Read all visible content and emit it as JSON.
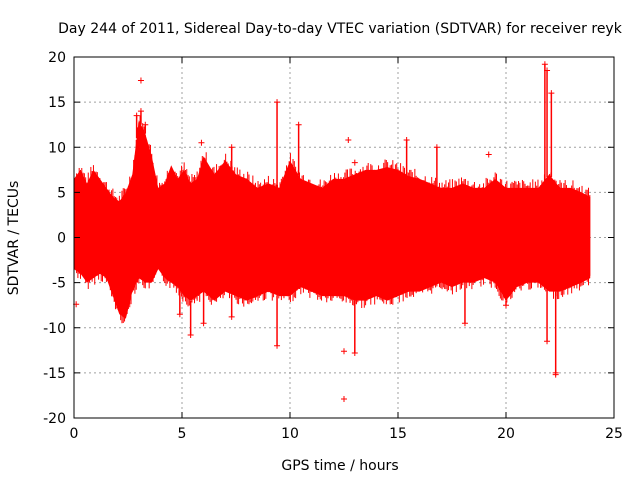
{
  "chart_data": {
    "type": "scatter",
    "title": "Day 244 of 2011, Sidereal Day-to-day VTEC variation (SDTVAR) for receiver reyk",
    "xlabel": "GPS time / hours",
    "ylabel": "SDTVAR / TECUs",
    "xlim": [
      0,
      25
    ],
    "ylim": [
      -20,
      20
    ],
    "xticks": [
      0,
      5,
      10,
      15,
      20,
      25
    ],
    "yticks": [
      -20,
      -15,
      -10,
      -5,
      0,
      5,
      10,
      15,
      20
    ],
    "grid": true,
    "marker": "+",
    "series_color": "#ff0000",
    "envelope": {
      "x": [
        0.0,
        0.3,
        0.6,
        0.9,
        1.2,
        1.5,
        1.8,
        2.1,
        2.4,
        2.7,
        3.0,
        3.3,
        3.6,
        3.9,
        4.2,
        4.5,
        4.8,
        5.1,
        5.4,
        5.7,
        6.0,
        6.5,
        7.0,
        7.5,
        8.0,
        8.5,
        9.0,
        9.5,
        10.0,
        10.5,
        11.0,
        11.5,
        12.0,
        12.5,
        13.0,
        13.5,
        14.0,
        14.5,
        15.0,
        15.5,
        16.0,
        16.5,
        17.0,
        17.5,
        18.0,
        18.5,
        19.0,
        19.5,
        20.0,
        20.5,
        21.0,
        21.5,
        22.0,
        22.5,
        23.0,
        23.5,
        23.9
      ],
      "upper": [
        6.5,
        7.5,
        6.0,
        7.5,
        6.5,
        5.5,
        4.5,
        4.0,
        5.0,
        7.0,
        13.0,
        11.5,
        9.0,
        5.5,
        6.0,
        8.0,
        6.5,
        7.5,
        6.0,
        6.5,
        9.0,
        7.0,
        8.5,
        7.0,
        6.5,
        5.5,
        6.0,
        5.5,
        8.5,
        6.5,
        6.0,
        5.5,
        6.5,
        6.5,
        7.0,
        7.5,
        7.5,
        7.8,
        7.5,
        6.8,
        6.5,
        6.0,
        5.5,
        5.5,
        6.0,
        5.5,
        5.5,
        6.5,
        5.5,
        5.5,
        5.5,
        5.5,
        7.0,
        5.5,
        5.5,
        5.0,
        4.5
      ],
      "lower": [
        -3.5,
        -4.0,
        -5.0,
        -4.5,
        -4.0,
        -4.5,
        -6.5,
        -8.5,
        -9.0,
        -6.0,
        -4.5,
        -5.0,
        -5.0,
        -3.5,
        -4.5,
        -5.0,
        -5.5,
        -6.5,
        -7.0,
        -6.5,
        -6.0,
        -7.0,
        -6.0,
        -6.5,
        -7.0,
        -6.5,
        -6.0,
        -6.5,
        -6.5,
        -5.5,
        -6.0,
        -6.5,
        -6.5,
        -6.5,
        -7.0,
        -7.0,
        -6.5,
        -7.0,
        -6.5,
        -6.0,
        -6.0,
        -5.5,
        -5.0,
        -5.5,
        -5.0,
        -5.0,
        -4.5,
        -5.0,
        -7.0,
        -5.5,
        -5.0,
        -5.0,
        -6.0,
        -6.0,
        -5.5,
        -5.0,
        -4.5
      ]
    },
    "spikes": [
      {
        "x": 2.9,
        "y": 13.5
      },
      {
        "x": 3.1,
        "y": 14.0
      },
      {
        "x": 3.3,
        "y": 12.5
      },
      {
        "x": 9.4,
        "y": 15.0
      },
      {
        "x": 9.4,
        "y": -12.0
      },
      {
        "x": 10.4,
        "y": 12.5
      },
      {
        "x": 7.3,
        "y": 10.0
      },
      {
        "x": 7.3,
        "y": -8.8
      },
      {
        "x": 5.4,
        "y": -10.8
      },
      {
        "x": 13.0,
        "y": -12.8
      },
      {
        "x": 15.4,
        "y": 10.8
      },
      {
        "x": 16.8,
        "y": 10.0
      },
      {
        "x": 18.1,
        "y": -9.5
      },
      {
        "x": 21.8,
        "y": 19.2
      },
      {
        "x": 21.9,
        "y": 18.5
      },
      {
        "x": 22.1,
        "y": 16.0
      },
      {
        "x": 21.9,
        "y": -11.5
      },
      {
        "x": 22.3,
        "y": -15.0
      },
      {
        "x": 20.0,
        "y": -7.5
      },
      {
        "x": 4.9,
        "y": -8.5
      },
      {
        "x": 6.0,
        "y": -9.5
      }
    ],
    "outliers": [
      {
        "x": 3.1,
        "y": 17.4
      },
      {
        "x": 12.5,
        "y": -17.9
      },
      {
        "x": 12.5,
        "y": -12.6
      },
      {
        "x": 12.7,
        "y": 10.8
      },
      {
        "x": 13.0,
        "y": 8.3
      },
      {
        "x": 19.2,
        "y": 9.2
      },
      {
        "x": 5.9,
        "y": 10.5
      },
      {
        "x": 0.1,
        "y": -7.4
      },
      {
        "x": 22.3,
        "y": -15.2
      }
    ]
  }
}
